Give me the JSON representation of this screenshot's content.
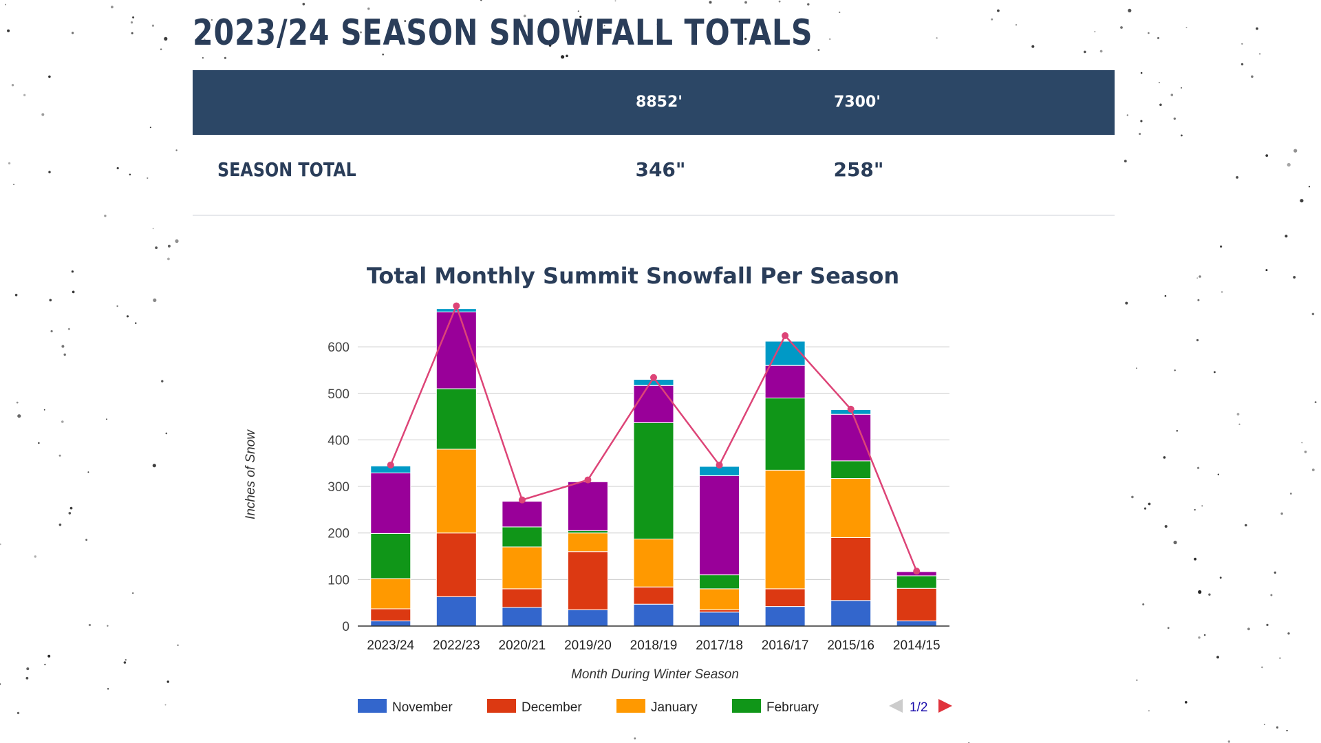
{
  "page": {
    "title": "2023/24 SEASON SNOWFALL TOTALS"
  },
  "totals": {
    "elevations": [
      "8852'",
      "7300'"
    ],
    "row_label": "SEASON TOTAL",
    "values": [
      "346\"",
      "258\""
    ]
  },
  "colors": {
    "header_bg": "#2c4766",
    "title_text": "#2a3d59"
  },
  "chart_data": {
    "type": "bar",
    "stacked": true,
    "title": "Total Monthly Summit Snowfall Per Season",
    "xlabel": "Month During Winter Season",
    "ylabel": "Inches of Snow",
    "ylim": [
      0,
      680
    ],
    "yticks": [
      0,
      100,
      200,
      300,
      400,
      500,
      600
    ],
    "grid": true,
    "legend_position": "bottom",
    "categories": [
      "2023/24",
      "2022/23",
      "2020/21",
      "2019/20",
      "2018/19",
      "2017/18",
      "2016/17",
      "2015/16",
      "2014/15"
    ],
    "series": [
      {
        "name": "November",
        "color": "#3366cc",
        "values": [
          11,
          63,
          40,
          35,
          47,
          30,
          42,
          55,
          11
        ]
      },
      {
        "name": "December",
        "color": "#dc3912",
        "values": [
          26,
          137,
          40,
          125,
          37,
          5,
          38,
          135,
          70
        ]
      },
      {
        "name": "January",
        "color": "#ff9900",
        "values": [
          65,
          180,
          90,
          40,
          103,
          45,
          255,
          127,
          0
        ]
      },
      {
        "name": "February",
        "color": "#109618",
        "values": [
          97,
          130,
          43,
          5,
          250,
          30,
          155,
          38,
          27
        ]
      },
      {
        "name": "",
        "color": "#990099",
        "values": [
          130,
          165,
          55,
          105,
          80,
          213,
          70,
          100,
          9
        ]
      },
      {
        "name": "",
        "color": "#0099c6",
        "values": [
          15,
          7,
          0,
          0,
          13,
          20,
          52,
          10,
          0
        ]
      }
    ],
    "line": {
      "color": "#dd4477",
      "values": [
        346,
        688,
        271,
        314,
        534,
        346,
        624,
        466,
        118
      ]
    },
    "legend_pager": "1/2"
  }
}
